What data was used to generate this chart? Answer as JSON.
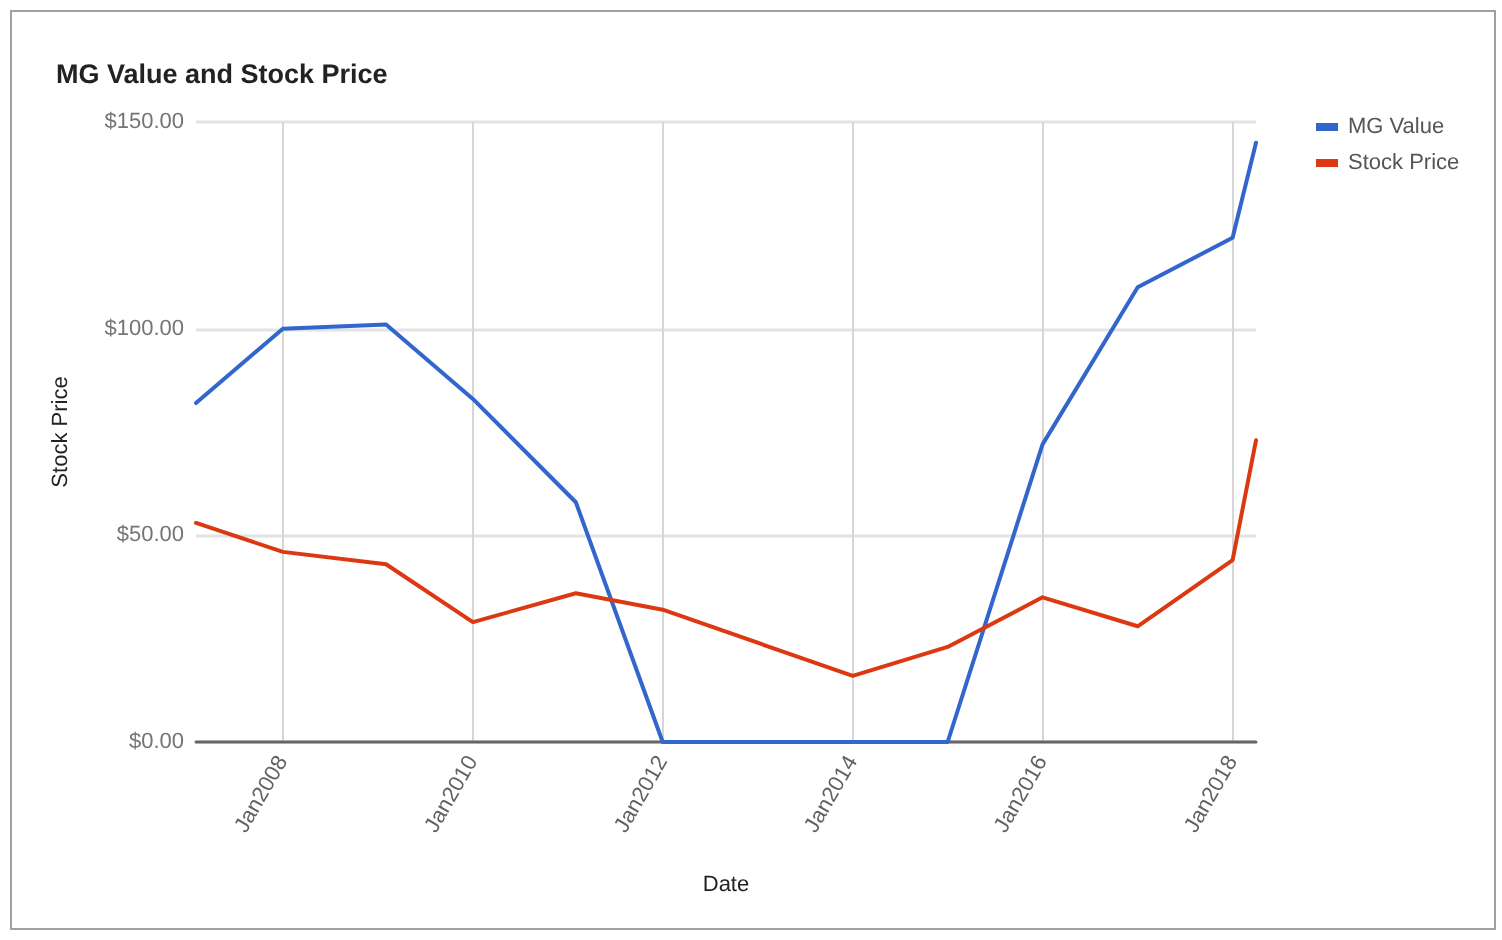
{
  "chart_data": {
    "type": "line",
    "title": "MG Value and Stock Price",
    "xlabel": "Date",
    "ylabel": "Stock Price",
    "x": [
      "2007-02",
      "2008-01",
      "2009-02",
      "2010-01",
      "2011-02",
      "2012-01",
      "2014-01",
      "2015-01",
      "2016-01",
      "2017-01",
      "2018-01",
      "2018-04"
    ],
    "series": [
      {
        "name": "MG Value",
        "color": "#3366cc",
        "values": [
          82,
          100,
          101,
          83,
          58,
          0,
          0,
          0,
          72,
          110,
          122,
          145
        ]
      },
      {
        "name": "Stock Price",
        "color": "#dc3912",
        "values": [
          53,
          46,
          43,
          29,
          36,
          32,
          16,
          23,
          35,
          28,
          44,
          73
        ]
      }
    ],
    "xlim": [
      "2007-02",
      "2018-04"
    ],
    "xticks": [
      {
        "value": "2008-01",
        "label": "Jan2008"
      },
      {
        "value": "2010-01",
        "label": "Jan2010"
      },
      {
        "value": "2012-01",
        "label": "Jan2012"
      },
      {
        "value": "2014-01",
        "label": "Jan2014"
      },
      {
        "value": "2016-01",
        "label": "Jan2016"
      },
      {
        "value": "2018-01",
        "label": "Jan2018"
      }
    ],
    "ylim": [
      0,
      150
    ],
    "yticks": [
      {
        "value": 0,
        "label": "$0.00"
      },
      {
        "value": 50,
        "label": "$50.00"
      },
      {
        "value": 100,
        "label": "$100.00"
      },
      {
        "value": 150,
        "label": "$150.00"
      }
    ],
    "grid": true,
    "legend": "right",
    "marker": "none",
    "line_style": "solid"
  }
}
